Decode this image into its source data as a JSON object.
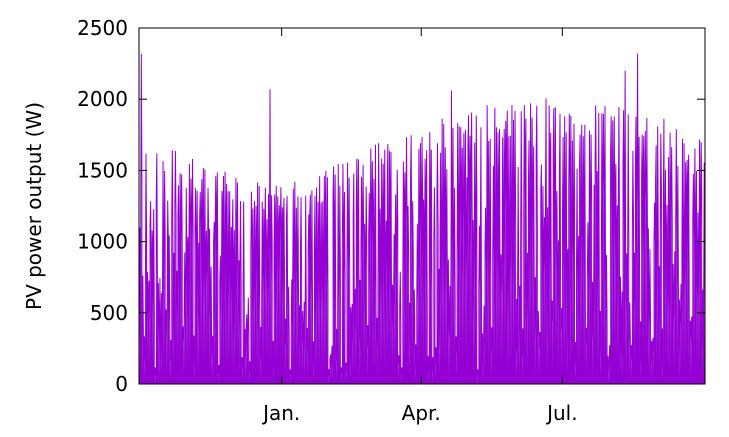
{
  "chart_data": {
    "type": "line",
    "title": "",
    "xlabel": "",
    "ylabel": "PV power output (W)",
    "ylim": [
      0,
      2500
    ],
    "yticks": [
      0,
      500,
      1000,
      1500,
      2000,
      2500
    ],
    "xticks": [
      {
        "label": "Jan.",
        "value": "Jan. 1"
      },
      {
        "label": "Apr.",
        "value": "Apr. 1"
      },
      {
        "label": "Jul.",
        "value": "Jul. 1"
      }
    ],
    "xlim": [
      "Oct. 1",
      "Sep. 30"
    ],
    "grid": false,
    "series": [
      {
        "name": "",
        "color": "#9400d3",
        "x": [
          "Oct. 1",
          "Oct. 15",
          "Nov. 1",
          "Nov. 15",
          "Dec. 1",
          "Dec. 15",
          "Jan. 1",
          "Jan. 15",
          "Feb. 1",
          "Feb. 15",
          "Mar. 1",
          "Mar. 15",
          "Apr. 1",
          "Apr. 15",
          "May 1",
          "May 15",
          "Jun. 1",
          "Jun. 15",
          "Jul. 1",
          "Jul. 15",
          "Aug. 1",
          "Aug. 15",
          "Sep. 1",
          "Sep. 15"
        ],
        "daily_peak_envelope": [
          1750,
          1680,
          1600,
          1530,
          1470,
          1420,
          1400,
          1450,
          1520,
          1600,
          1690,
          1760,
          1820,
          1880,
          1930,
          1970,
          2000,
          2010,
          2000,
          1970,
          1960,
          1950,
          1930,
          1760
        ],
        "spikes": [
          {
            "x": "Oct. 2",
            "y": 2320
          },
          {
            "x": "Dec. 24",
            "y": 2070
          },
          {
            "x": "Apr. 20",
            "y": 2060
          },
          {
            "x": "Aug. 10",
            "y": 2200
          },
          {
            "x": "Aug. 18",
            "y": 2320
          }
        ]
      }
    ]
  }
}
